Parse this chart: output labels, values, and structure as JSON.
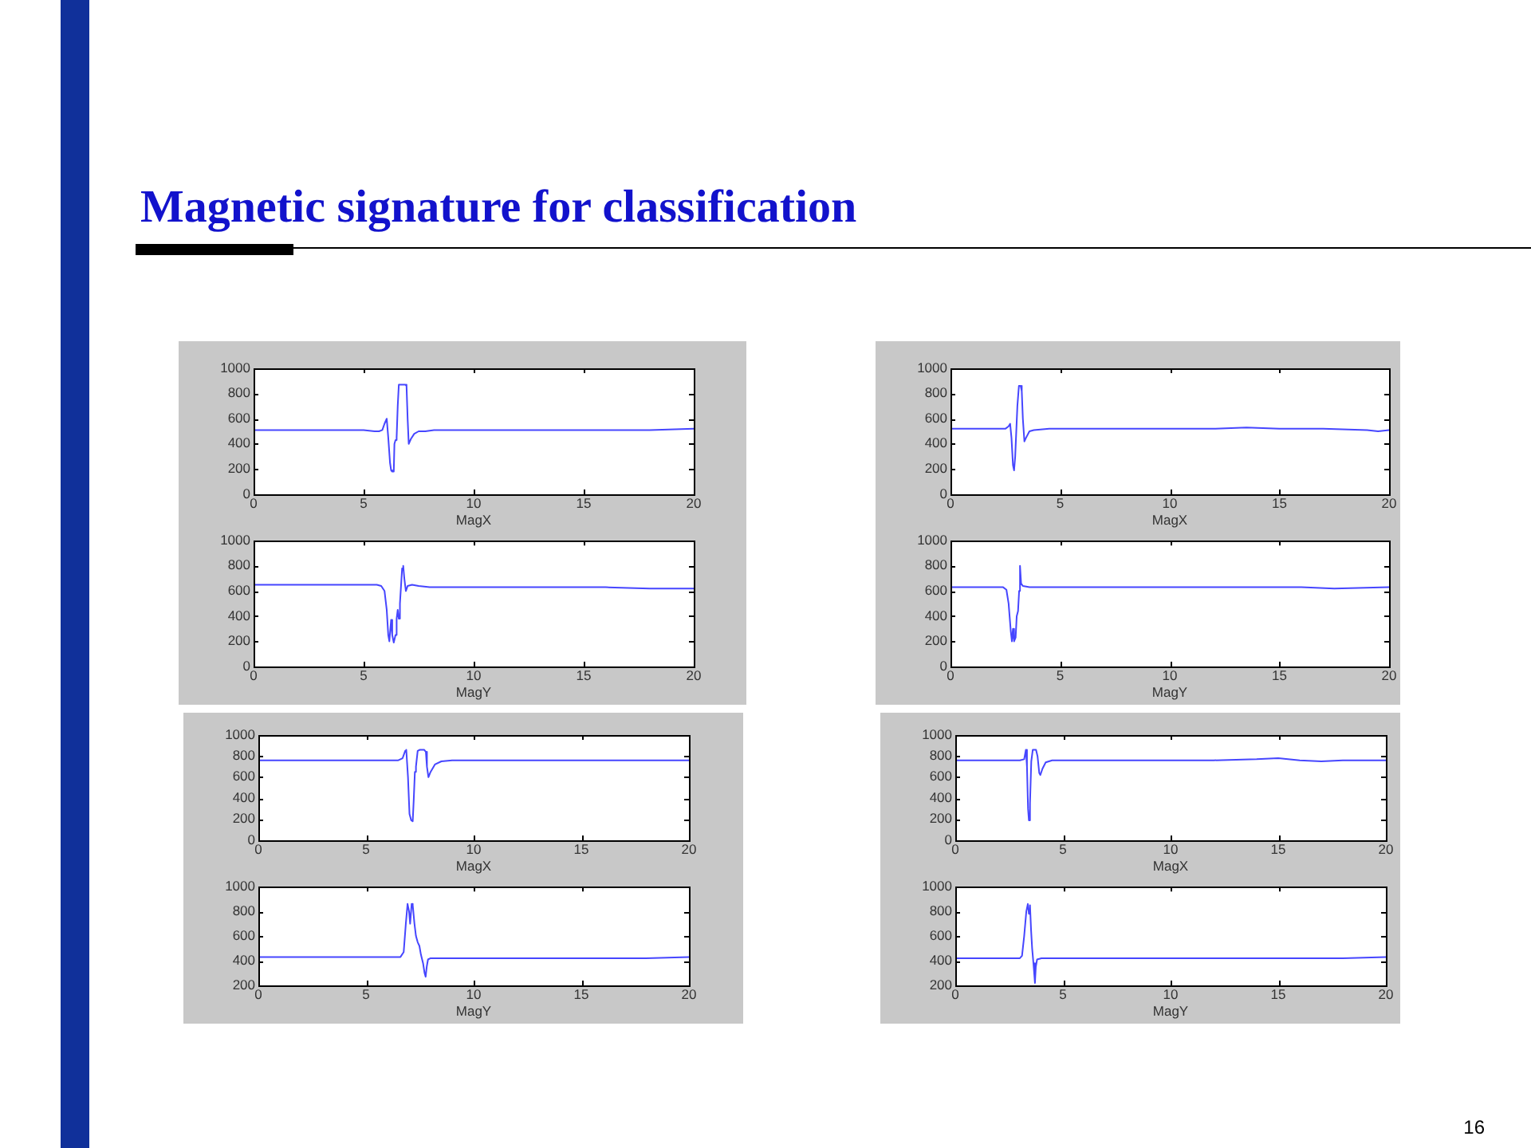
{
  "chart_data": [
    {
      "type": "line",
      "title": "Magnetic signature for classification",
      "xlabel": "MagX",
      "color": "#4646ff",
      "marker": "none",
      "xlim": [
        0,
        20
      ],
      "xticks": [
        0,
        5,
        10,
        15,
        20
      ],
      "ylim": [
        0,
        1000
      ],
      "yticks": [
        0,
        200,
        400,
        600,
        800,
        1000
      ],
      "x": [
        0,
        1,
        2,
        3,
        4,
        5,
        5.5,
        5.7,
        5.85,
        5.95,
        6.05,
        6.12,
        6.2,
        6.25,
        6.3,
        6.37,
        6.4,
        6.45,
        6.5,
        6.55,
        6.6,
        6.65,
        6.8,
        6.9,
        6.95,
        7.0,
        7.05,
        7.15,
        7.3,
        7.5,
        7.8,
        8.2,
        9,
        10,
        12,
        14,
        16,
        18,
        20
      ],
      "values": [
        510,
        510,
        510,
        510,
        510,
        510,
        500,
        500,
        510,
        560,
        600,
        450,
        250,
        190,
        180,
        180,
        400,
        430,
        450,
        700,
        870,
        870,
        870,
        870,
        860,
        600,
        400,
        440,
        480,
        500,
        500,
        510,
        510,
        510,
        510,
        510,
        510,
        510,
        520
      ]
    },
    {
      "type": "line",
      "xlabel": "MagY",
      "color": "#4646ff",
      "marker": "none",
      "xlim": [
        0,
        20
      ],
      "xticks": [
        0,
        5,
        10,
        15,
        20
      ],
      "ylim": [
        0,
        1000
      ],
      "yticks": [
        0,
        200,
        400,
        600,
        800,
        1000
      ],
      "x": [
        0,
        2,
        4,
        5,
        5.6,
        5.8,
        5.95,
        6.05,
        6.12,
        6.17,
        6.25,
        6.3,
        6.37,
        6.45,
        6.5,
        6.55,
        6.6,
        6.65,
        6.75,
        6.8,
        6.85,
        6.92,
        7.0,
        7.2,
        7.5,
        8,
        9,
        10,
        12,
        14,
        16,
        18,
        20
      ],
      "values": [
        650,
        650,
        650,
        650,
        650,
        640,
        600,
        450,
        250,
        200,
        370,
        250,
        190,
        250,
        380,
        450,
        380,
        500,
        780,
        800,
        700,
        600,
        640,
        650,
        640,
        630,
        630,
        630,
        630,
        630,
        630,
        620,
        620
      ]
    },
    {
      "type": "line",
      "xlabel": "MagX",
      "color": "#4646ff",
      "marker": "none",
      "xlim": [
        0,
        20
      ],
      "xticks": [
        0,
        5,
        10,
        15,
        20
      ],
      "ylim": [
        0,
        1000
      ],
      "yticks": [
        0,
        200,
        400,
        600,
        800,
        1000
      ],
      "x": [
        0,
        1,
        2,
        2.5,
        2.65,
        2.72,
        2.78,
        2.85,
        2.9,
        2.95,
        3.05,
        3.12,
        3.2,
        3.25,
        3.3,
        3.37,
        3.45,
        3.6,
        3.8,
        4.5,
        6,
        8,
        10,
        12,
        13.5,
        15,
        17,
        19,
        19.5,
        20
      ],
      "values": [
        520,
        520,
        520,
        520,
        540,
        560,
        450,
        230,
        190,
        300,
        700,
        860,
        860,
        820,
        600,
        420,
        450,
        500,
        510,
        520,
        520,
        520,
        520,
        520,
        530,
        520,
        520,
        510,
        500,
        510
      ]
    },
    {
      "type": "line",
      "xlabel": "MagY",
      "color": "#4646ff",
      "marker": "none",
      "xlim": [
        0,
        20
      ],
      "xticks": [
        0,
        5,
        10,
        15,
        20
      ],
      "ylim": [
        0,
        1000
      ],
      "yticks": [
        0,
        200,
        400,
        600,
        800,
        1000
      ],
      "x": [
        0,
        1,
        2,
        2.4,
        2.55,
        2.65,
        2.75,
        2.8,
        2.85,
        2.9,
        2.97,
        3.02,
        3.08,
        3.13,
        3.17,
        3.22,
        3.3,
        3.6,
        4,
        6,
        8,
        10,
        12,
        14,
        16,
        17.5,
        20
      ],
      "values": [
        630,
        630,
        630,
        630,
        610,
        500,
        280,
        200,
        300,
        200,
        230,
        400,
        440,
        600,
        800,
        660,
        640,
        630,
        630,
        630,
        630,
        630,
        630,
        630,
        630,
        620,
        630
      ]
    },
    {
      "type": "line",
      "xlabel": "MagX",
      "color": "#4646ff",
      "marker": "none",
      "xlim": [
        0,
        20
      ],
      "xticks": [
        0,
        5,
        10,
        15,
        20
      ],
      "ylim": [
        0,
        1000
      ],
      "yticks": [
        0,
        200,
        400,
        600,
        800,
        1000
      ],
      "x": [
        0,
        2,
        4,
        6,
        6.5,
        6.7,
        6.82,
        6.87,
        6.95,
        7.02,
        7.1,
        7.17,
        7.22,
        7.27,
        7.32,
        7.4,
        7.5,
        7.7,
        7.78,
        7.83,
        7.9,
        8.0,
        8.2,
        8.5,
        9,
        10,
        12,
        14,
        16,
        18,
        20
      ],
      "values": [
        760,
        760,
        760,
        760,
        760,
        780,
        850,
        860,
        600,
        250,
        190,
        180,
        400,
        650,
        700,
        850,
        860,
        860,
        840,
        700,
        600,
        650,
        720,
        750,
        760,
        760,
        760,
        760,
        760,
        760,
        760
      ]
    },
    {
      "type": "line",
      "xlabel": "MagY",
      "color": "#4646ff",
      "marker": "none",
      "xlim": [
        0,
        20
      ],
      "xticks": [
        0,
        5,
        10,
        15,
        20
      ],
      "ylim": [
        200,
        1000
      ],
      "yticks": [
        200,
        400,
        600,
        800,
        1000
      ],
      "x": [
        0,
        2,
        4,
        5,
        6,
        6.6,
        6.75,
        6.85,
        6.93,
        7.0,
        7.05,
        7.12,
        7.17,
        7.25,
        7.32,
        7.4,
        7.48,
        7.55,
        7.65,
        7.72,
        7.77,
        7.82,
        7.88,
        8.0,
        9,
        10,
        12,
        14,
        16,
        18,
        20
      ],
      "values": [
        430,
        430,
        430,
        430,
        430,
        430,
        470,
        700,
        860,
        800,
        700,
        860,
        850,
        700,
        600,
        550,
        520,
        450,
        380,
        300,
        270,
        350,
        410,
        420,
        420,
        420,
        420,
        420,
        420,
        420,
        430
      ]
    },
    {
      "type": "line",
      "xlabel": "MagX",
      "color": "#4646ff",
      "marker": "none",
      "xlim": [
        0,
        20
      ],
      "xticks": [
        0,
        5,
        10,
        15,
        20
      ],
      "ylim": [
        0,
        1000
      ],
      "yticks": [
        0,
        200,
        400,
        600,
        800,
        1000
      ],
      "x": [
        0,
        2,
        3,
        3.2,
        3.28,
        3.33,
        3.38,
        3.42,
        3.47,
        3.53,
        3.6,
        3.75,
        3.82,
        3.9,
        3.95,
        4.05,
        4.2,
        4.5,
        6,
        8,
        10,
        12,
        14,
        15,
        16,
        17,
        18,
        20
      ],
      "values": [
        760,
        760,
        760,
        770,
        860,
        700,
        300,
        190,
        350,
        750,
        860,
        860,
        800,
        640,
        620,
        680,
        740,
        760,
        760,
        760,
        760,
        760,
        770,
        780,
        760,
        750,
        760,
        760
      ]
    },
    {
      "type": "line",
      "xlabel": "MagY",
      "color": "#4646ff",
      "marker": "none",
      "xlim": [
        0,
        20
      ],
      "xticks": [
        0,
        5,
        10,
        15,
        20
      ],
      "ylim": [
        200,
        1000
      ],
      "yticks": [
        200,
        400,
        600,
        800,
        1000
      ],
      "annotations": [
        "16"
      ],
      "x": [
        0,
        2,
        3,
        3.1,
        3.2,
        3.3,
        3.37,
        3.42,
        3.47,
        3.52,
        3.57,
        3.63,
        3.7,
        3.74,
        3.8,
        4.0,
        5,
        6,
        8,
        10,
        12,
        14,
        16,
        18,
        20
      ],
      "values": [
        420,
        420,
        420,
        440,
        600,
        800,
        860,
        780,
        850,
        650,
        500,
        380,
        220,
        350,
        410,
        420,
        420,
        420,
        420,
        420,
        420,
        420,
        420,
        420,
        430
      ]
    }
  ]
}
